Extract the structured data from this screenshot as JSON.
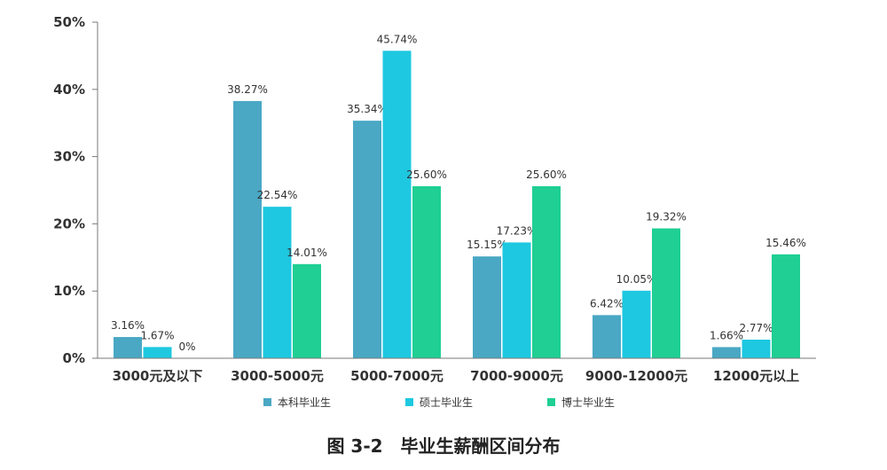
{
  "chart_data": {
    "type": "bar",
    "caption": "图 3-2　毕业生薪酬区间分布",
    "categories": [
      "3000元及以下",
      "3000-5000元",
      "5000-7000元",
      "7000-9000元",
      "9000-12000元",
      "12000元以上"
    ],
    "series": [
      {
        "name": "本科毕业生",
        "color": "#4aa8c4",
        "values": [
          3.16,
          38.27,
          35.34,
          15.15,
          6.42,
          1.66
        ],
        "labels": [
          "3.16%",
          "38.27%",
          "35.34%",
          "15.15%",
          "6.42%",
          "1.66%"
        ]
      },
      {
        "name": "硕士毕业生",
        "color": "#1ec8e0",
        "values": [
          1.67,
          22.54,
          45.74,
          17.23,
          10.05,
          2.77
        ],
        "labels": [
          "1.67%",
          "22.54%",
          "45.74%",
          "17.23%",
          "10.05%",
          "2.77%"
        ]
      },
      {
        "name": "博士毕业生",
        "color": "#1fcf93",
        "values": [
          0,
          14.01,
          25.6,
          25.6,
          19.32,
          15.46
        ],
        "labels": [
          "0%",
          "14.01%",
          "25.60%",
          "25.60%",
          "19.32%",
          "15.46%"
        ]
      }
    ],
    "ylim": [
      0,
      50
    ],
    "yticks": [
      "0%",
      "10%",
      "20%",
      "30%",
      "40%",
      "50%"
    ],
    "xlabel": "",
    "ylabel": "",
    "grid": false,
    "legend_position": "bottom"
  }
}
